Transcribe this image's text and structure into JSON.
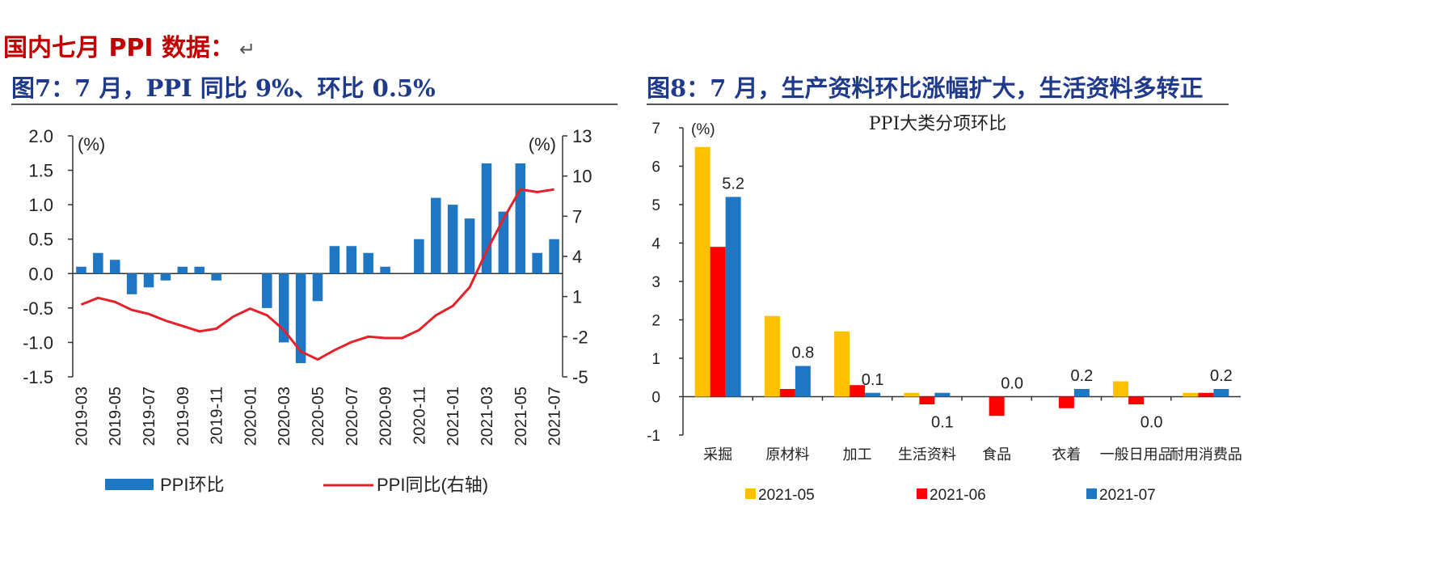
{
  "heading": {
    "text": "国内七月 PPI 数据：",
    "return_mark": "↵"
  },
  "figures": {
    "fig7_title": "图7：7 月，PPI 同比 9%、环比 0.5%",
    "fig8_title": "图8：7 月，生产资料环比涨幅扩大，生活资料多转正"
  },
  "chart_data": [
    {
      "type": "bar+line",
      "left_unit": "(%)",
      "right_unit": "(%)",
      "left_axis": {
        "ylim": [
          -1.5,
          2.0
        ],
        "ticks": [
          "2.0",
          "1.5",
          "1.0",
          "0.5",
          "0.0",
          "-0.5",
          "-1.0",
          "-1.5"
        ]
      },
      "right_axis": {
        "ylim": [
          -5,
          13
        ],
        "ticks": [
          "13",
          "10",
          "7",
          "4",
          "1",
          "-2",
          "-5"
        ]
      },
      "x": [
        "2019-03",
        "2019-04",
        "2019-05",
        "2019-06",
        "2019-07",
        "2019-08",
        "2019-09",
        "2019-10",
        "2019-11",
        "2019-12",
        "2020-01",
        "2020-02",
        "2020-03",
        "2020-04",
        "2020-05",
        "2020-06",
        "2020-07",
        "2020-08",
        "2020-09",
        "2020-10",
        "2020-11",
        "2020-12",
        "2021-01",
        "2021-02",
        "2021-03",
        "2021-04",
        "2021-05",
        "2021-06",
        "2021-07"
      ],
      "x_tick_labels": [
        "2019-03",
        "2019-05",
        "2019-07",
        "2019-09",
        "2019-11",
        "2020-01",
        "2020-03",
        "2020-05",
        "2020-07",
        "2020-09",
        "2020-11",
        "2021-01",
        "2021-03",
        "2021-05",
        "2021-07"
      ],
      "series": [
        {
          "name": "PPI环比",
          "kind": "bar",
          "color": "#1f77c4",
          "axis": "left",
          "values": [
            0.1,
            0.3,
            0.2,
            -0.3,
            -0.2,
            -0.1,
            0.1,
            0.1,
            -0.1,
            0.0,
            0.0,
            -0.5,
            -1.0,
            -1.3,
            -0.4,
            0.4,
            0.4,
            0.3,
            0.1,
            0.0,
            0.5,
            1.1,
            1.0,
            0.8,
            1.6,
            0.9,
            1.6,
            0.3,
            0.5
          ]
        },
        {
          "name": "PPI同比(右轴)",
          "kind": "line",
          "color": "#e8202a",
          "axis": "right",
          "values": [
            0.4,
            0.9,
            0.6,
            0.0,
            -0.3,
            -0.8,
            -1.2,
            -1.6,
            -1.4,
            -0.5,
            0.1,
            -0.4,
            -1.5,
            -3.1,
            -3.7,
            -3.0,
            -2.4,
            -2.0,
            -2.1,
            -2.1,
            -1.5,
            -0.4,
            0.3,
            1.7,
            4.4,
            6.8,
            9.0,
            8.8,
            9.0
          ]
        }
      ]
    },
    {
      "type": "bar",
      "title": "PPI大类分项环比",
      "unit": "(%)",
      "ylim": [
        -1,
        7
      ],
      "ticks": [
        "7",
        "6",
        "5",
        "4",
        "3",
        "2",
        "1",
        "0",
        "-1"
      ],
      "categories": [
        "采掘",
        "原材料",
        "加工",
        "生活资料",
        "食品",
        "衣着",
        "一般日用品",
        "耐用消费品"
      ],
      "series": [
        {
          "name": "2021-05",
          "color": "#ffc000",
          "values": [
            6.5,
            2.1,
            1.7,
            0.1,
            0.0,
            0.0,
            0.4,
            0.1
          ]
        },
        {
          "name": "2021-06",
          "color": "#ff0000",
          "values": [
            3.9,
            0.2,
            0.3,
            -0.2,
            -0.5,
            -0.3,
            -0.2,
            0.1
          ]
        },
        {
          "name": "2021-07",
          "color": "#1f77c4",
          "values": [
            5.2,
            0.8,
            0.1,
            0.1,
            0.0,
            0.2,
            0.0,
            0.2
          ]
        }
      ],
      "data_labels": [
        {
          "category_index": 0,
          "text": "5.2",
          "pos": "above"
        },
        {
          "category_index": 1,
          "text": "0.8",
          "pos": "above"
        },
        {
          "category_index": 2,
          "text": "0.1",
          "pos": "above"
        },
        {
          "category_index": 3,
          "text": "0.1",
          "pos": "below"
        },
        {
          "category_index": 4,
          "text": "0.0",
          "pos": "above"
        },
        {
          "category_index": 5,
          "text": "0.2",
          "pos": "above"
        },
        {
          "category_index": 6,
          "text": "0.0",
          "pos": "below"
        },
        {
          "category_index": 7,
          "text": "0.2",
          "pos": "above"
        }
      ]
    }
  ]
}
